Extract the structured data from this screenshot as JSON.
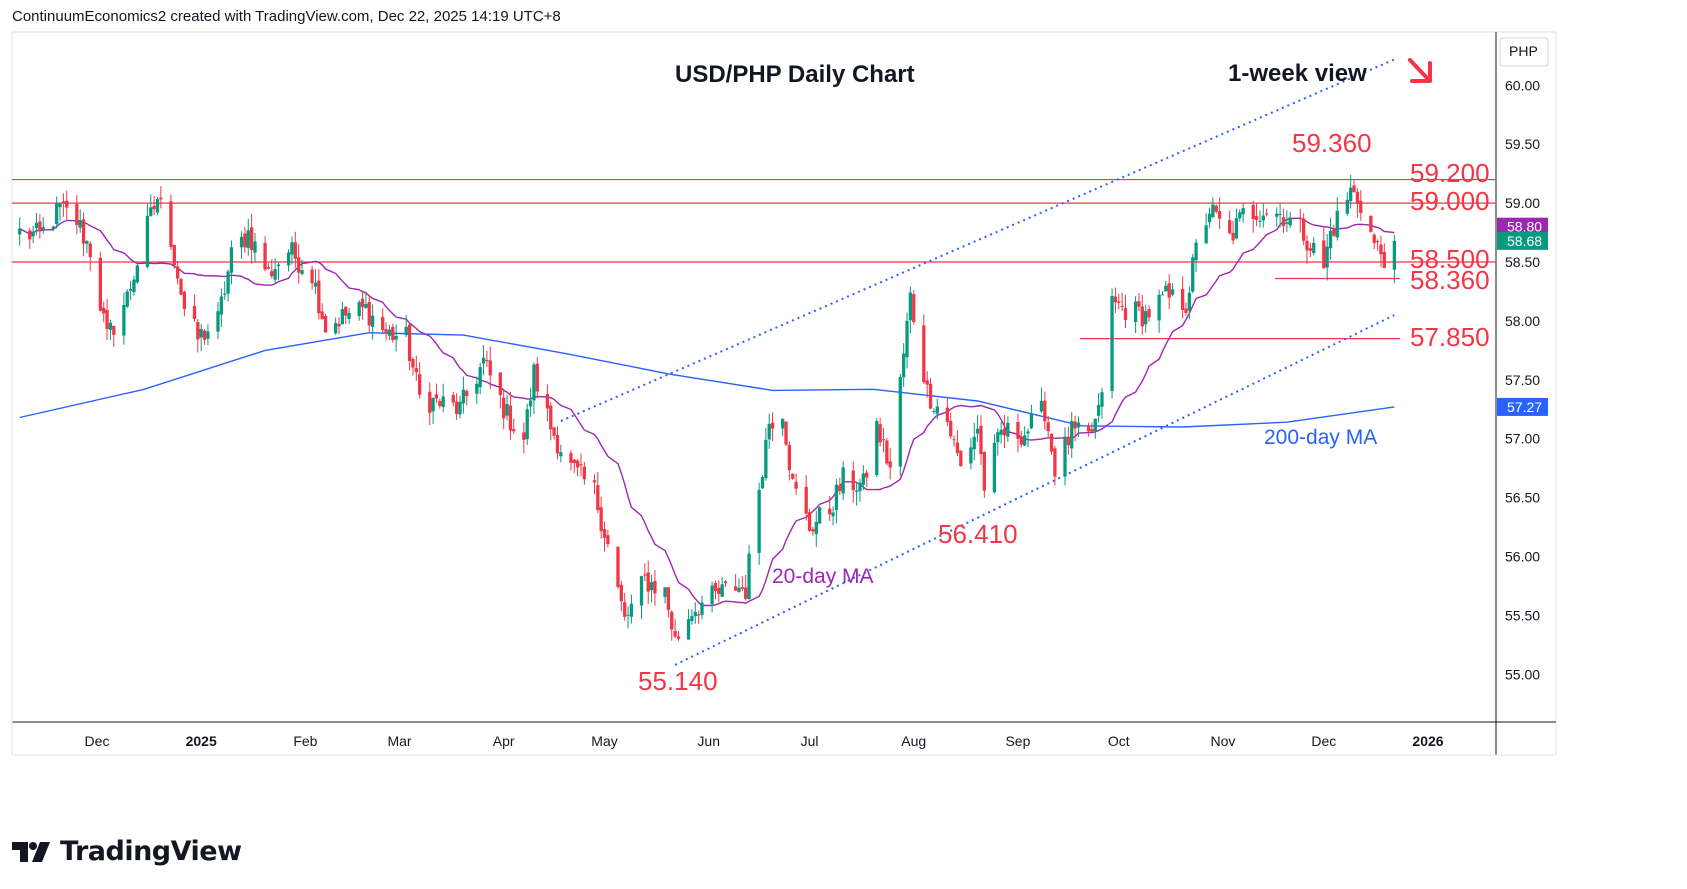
{
  "header": {
    "credit": "ContinuumEconomics2 created with TradingView.com, Dec 22, 2025 14:19 UTC+8"
  },
  "logo": {
    "text": "TradingView"
  },
  "colors": {
    "up": "#089981",
    "down": "#f23645",
    "ma20": "#9c27b0",
    "ma200": "#2962ff",
    "channel": "#2962ff",
    "level": "#f23645",
    "arrow": "#f23645"
  },
  "chart_data": {
    "type": "candlestick",
    "title": "USD/PHP Daily Chart",
    "view_note": "1-week view",
    "currency": "PHP",
    "y_ticks": [
      "60.00",
      "59.50",
      "59.00",
      "58.50",
      "58.00",
      "57.50",
      "57.00",
      "56.50",
      "56.00",
      "55.50",
      "55.00"
    ],
    "ylim": [
      54.58,
      60.44
    ],
    "x_ticks": [
      "Dec",
      "2025",
      "Feb",
      "Mar",
      "Apr",
      "May",
      "Jun",
      "Jul",
      "Aug",
      "Sep",
      "Oct",
      "Nov",
      "Dec",
      "2026"
    ],
    "price_tags": [
      {
        "label": "58.80",
        "value": 58.8,
        "color": "#9c27b0"
      },
      {
        "label": "58.68",
        "value": 58.68,
        "color": "#089981"
      },
      {
        "label": "57.27",
        "value": 57.27,
        "color": "#2962ff"
      }
    ],
    "levels": [
      {
        "label": "59.200",
        "value": 59.2
      },
      {
        "label": "59.000",
        "value": 59.0
      },
      {
        "label": "58.500",
        "value": 58.5
      },
      {
        "label": "58.360",
        "value": 58.36
      },
      {
        "label": "57.850",
        "value": 57.85
      }
    ],
    "annotations": [
      {
        "label": "59.360",
        "value": 59.36,
        "date": "2025-12-09"
      },
      {
        "label": "56.410",
        "value": 56.41,
        "date": "2025-08-22"
      },
      {
        "label": "55.140",
        "value": 55.14,
        "date": "2025-05-22"
      }
    ],
    "indicators": [
      {
        "name": "20-day MA",
        "color": "#9c27b0"
      },
      {
        "name": "200-day MA",
        "color": "#2962ff"
      }
    ],
    "trend_channel": {
      "lower": [
        [
          "2025-05-22",
          55.08
        ],
        [
          "2025-12-22",
          58.05
        ]
      ],
      "upper": [
        [
          "2025-04-18",
          57.15
        ],
        [
          "2025-12-22",
          60.22
        ]
      ]
    },
    "anchors": [
      [
        "2024-11-08",
        58.75
      ],
      [
        "2024-11-14",
        58.72
      ],
      [
        "2024-11-20",
        58.95
      ],
      [
        "2024-11-25",
        58.85
      ],
      [
        "2024-11-29",
        58.6
      ],
      [
        "2024-12-04",
        57.85
      ],
      [
        "2024-12-10",
        58.2
      ],
      [
        "2024-12-16",
        58.8
      ],
      [
        "2024-12-19",
        59.05
      ],
      [
        "2024-12-23",
        58.7
      ],
      [
        "2024-12-27",
        58.1
      ],
      [
        "2024-12-31",
        57.85
      ],
      [
        "2025-01-06",
        58.0
      ],
      [
        "2025-01-10",
        58.55
      ],
      [
        "2025-01-15",
        58.75
      ],
      [
        "2025-01-21",
        58.4
      ],
      [
        "2025-01-27",
        58.6
      ],
      [
        "2025-02-03",
        58.4
      ],
      [
        "2025-02-07",
        57.95
      ],
      [
        "2025-02-13",
        58.05
      ],
      [
        "2025-02-19",
        58.1
      ],
      [
        "2025-02-25",
        57.9
      ],
      [
        "2025-03-03",
        57.85
      ],
      [
        "2025-03-07",
        57.35
      ],
      [
        "2025-03-13",
        57.3
      ],
      [
        "2025-03-19",
        57.25
      ],
      [
        "2025-03-26",
        57.65
      ],
      [
        "2025-04-02",
        57.2
      ],
      [
        "2025-04-07",
        57.0
      ],
      [
        "2025-04-10",
        57.55
      ],
      [
        "2025-04-15",
        57.1
      ],
      [
        "2025-04-21",
        56.75
      ],
      [
        "2025-04-28",
        56.55
      ],
      [
        "2025-05-02",
        56.1
      ],
      [
        "2025-05-07",
        55.45
      ],
      [
        "2025-05-13",
        55.8
      ],
      [
        "2025-05-19",
        55.7
      ],
      [
        "2025-05-22",
        55.28
      ],
      [
        "2025-05-27",
        55.55
      ],
      [
        "2025-06-02",
        55.65
      ],
      [
        "2025-06-09",
        55.75
      ],
      [
        "2025-06-12",
        55.72
      ],
      [
        "2025-06-16",
        56.6
      ],
      [
        "2025-06-19",
        57.15
      ],
      [
        "2025-06-23",
        57.25
      ],
      [
        "2025-06-26",
        56.6
      ],
      [
        "2025-07-01",
        56.25
      ],
      [
        "2025-07-07",
        56.4
      ],
      [
        "2025-07-11",
        56.65
      ],
      [
        "2025-07-17",
        56.6
      ],
      [
        "2025-07-21",
        57.1
      ],
      [
        "2025-07-25",
        56.75
      ],
      [
        "2025-07-31",
        58.2
      ],
      [
        "2025-08-05",
        57.4
      ],
      [
        "2025-08-11",
        57.15
      ],
      [
        "2025-08-15",
        56.75
      ],
      [
        "2025-08-20",
        57.1
      ],
      [
        "2025-08-22",
        56.6
      ],
      [
        "2025-08-27",
        57.05
      ],
      [
        "2025-09-03",
        57.05
      ],
      [
        "2025-09-09",
        57.25
      ],
      [
        "2025-09-12",
        56.75
      ],
      [
        "2025-09-17",
        57.05
      ],
      [
        "2025-09-22",
        57.0
      ],
      [
        "2025-09-25",
        57.2
      ],
      [
        "2025-09-29",
        58.15
      ],
      [
        "2025-10-03",
        58.1
      ],
      [
        "2025-10-09",
        58.05
      ],
      [
        "2025-10-15",
        58.2
      ],
      [
        "2025-10-21",
        58.15
      ],
      [
        "2025-10-24",
        58.6
      ],
      [
        "2025-10-28",
        58.95
      ],
      [
        "2025-11-03",
        58.7
      ],
      [
        "2025-11-07",
        58.9
      ],
      [
        "2025-11-13",
        58.95
      ],
      [
        "2025-11-19",
        58.9
      ],
      [
        "2025-11-25",
        58.75
      ],
      [
        "2025-12-01",
        58.45
      ],
      [
        "2025-12-03",
        58.75
      ],
      [
        "2025-12-09",
        59.1
      ],
      [
        "2025-12-12",
        59.0
      ],
      [
        "2025-12-16",
        58.65
      ],
      [
        "2025-12-19",
        58.55
      ],
      [
        "2025-12-22",
        58.68
      ]
    ]
  }
}
